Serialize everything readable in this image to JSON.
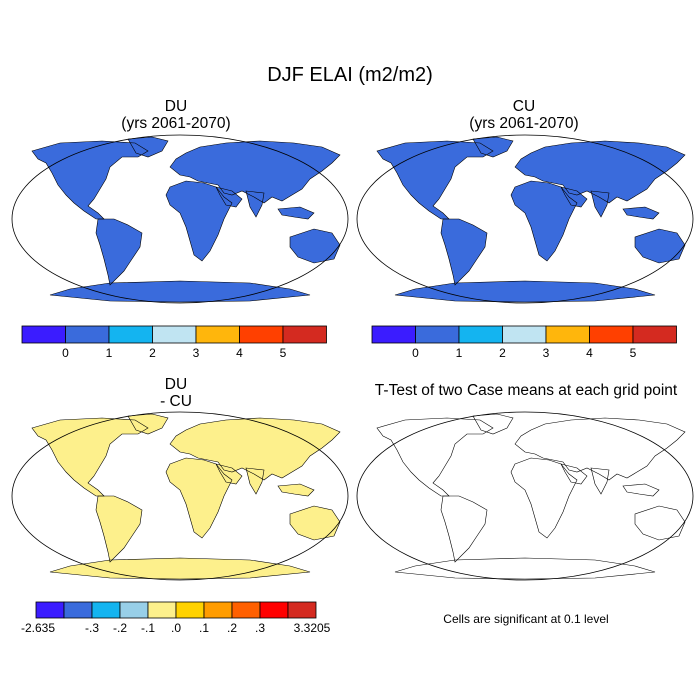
{
  "figure": {
    "title": "DJF ELAI (m2/m2)"
  },
  "panels": {
    "du": {
      "title": "DU",
      "subtitle": "(yrs 2061-2070)"
    },
    "cu": {
      "title": "CU",
      "subtitle": "(yrs 2061-2070)"
    },
    "diff": {
      "title": "DU",
      "subtitle": "- CU"
    },
    "ttest": {
      "title": "T-Test of two Case means at each grid point",
      "note": "Cells are significant at 0.1 level"
    }
  },
  "colorbars": {
    "elai": {
      "colors": [
        "#3b1cff",
        "#3a6bdc",
        "#14b4f0",
        "#c0e4f2",
        "#ffb60c",
        "#ff4000",
        "#d42a20"
      ],
      "labels": [
        "0",
        "1",
        "2",
        "3",
        "4",
        "5"
      ]
    },
    "diff": {
      "colors": [
        "#3b1cff",
        "#3a6bdc",
        "#14b4f0",
        "#98cfe8",
        "#fdf08c",
        "#ffd200",
        "#ff9c00",
        "#ff6000",
        "#ff0000",
        "#d42a20"
      ],
      "labels": [
        "-2.635",
        "-.3",
        "-.2",
        "-.1",
        ".0",
        ".1",
        ".2",
        ".3",
        "3.3205"
      ]
    }
  },
  "map_colors": {
    "ocean": "#ffffff",
    "land_base_abs": "#3a6bdc",
    "land_base_diff": "#fdf08c",
    "significant": "#ff0000",
    "coast": "#000000"
  }
}
